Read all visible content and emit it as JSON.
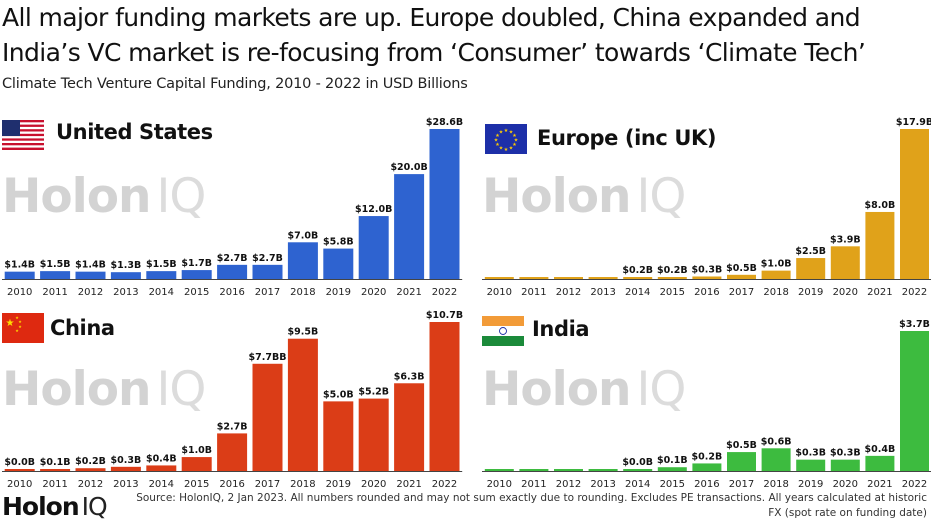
{
  "header": {
    "headline_line1": "All major funding markets are up. Europe doubled, China expanded and",
    "headline_line2": "India’s VC market is re-focusing from ‘Consumer’ towards ‘Climate Tech’",
    "subtitle": "Climate Tech Venture Capital Funding, 2010 - 2022 in USD Billions"
  },
  "watermark": {
    "brand": "Holon",
    "suffix": "IQ"
  },
  "footer": {
    "logo_brand": "Holon",
    "logo_suffix": "IQ",
    "source_line1": "Source: HolonIQ, 2 Jan 2023. All numbers rounded and may not sum exactly due to rounding. Excludes PE transactions. All years calculated at historic",
    "source_line2": "FX (spot rate on funding date)"
  },
  "chart_data": [
    {
      "type": "bar",
      "title": "United States",
      "flag_icon": "us-flag-icon",
      "color": "#2e63d0",
      "categories": [
        "2010",
        "2011",
        "2012",
        "2013",
        "2014",
        "2015",
        "2016",
        "2017",
        "2018",
        "2019",
        "2020",
        "2021",
        "2022"
      ],
      "values": [
        1.4,
        1.5,
        1.4,
        1.3,
        1.5,
        1.7,
        2.7,
        2.7,
        7.0,
        5.8,
        12.0,
        20.0,
        28.6
      ],
      "labels": [
        "$1.4B",
        "$1.5B",
        "$1.4B",
        "$1.3B",
        "$1.5B",
        "$1.7B",
        "$2.7B",
        "$2.7B",
        "$7.0B",
        "$5.8B",
        "$12.0B",
        "$20.0B",
        "$28.6B"
      ],
      "ylim": [
        0,
        28.6
      ]
    },
    {
      "type": "bar",
      "title": "Europe (inc UK)",
      "flag_icon": "eu-flag-icon",
      "color": "#e0a21a",
      "categories": [
        "2010",
        "2011",
        "2012",
        "2013",
        "2014",
        "2015",
        "2016",
        "2017",
        "2018",
        "2019",
        "2020",
        "2021",
        "2022"
      ],
      "values": [
        0.0,
        0.0,
        0.1,
        0.1,
        0.2,
        0.2,
        0.3,
        0.5,
        1.0,
        2.5,
        3.9,
        8.0,
        17.9
      ],
      "labels": [
        "",
        "",
        "",
        "",
        "$0.2B",
        "$0.2B",
        "$0.3B",
        "$0.5B",
        "$1.0B",
        "$2.5B",
        "$3.9B",
        "$8.0B",
        "$17.9B"
      ],
      "ylim": [
        0,
        17.9
      ]
    },
    {
      "type": "bar",
      "title": "China",
      "flag_icon": "china-flag-icon",
      "color": "#db3d17",
      "categories": [
        "2010",
        "2011",
        "2012",
        "2013",
        "2014",
        "2015",
        "2016",
        "2017",
        "2018",
        "2019",
        "2020",
        "2021",
        "2022"
      ],
      "values": [
        0.0,
        0.1,
        0.2,
        0.3,
        0.4,
        1.0,
        2.7,
        7.7,
        9.5,
        5.0,
        5.2,
        6.3,
        10.7
      ],
      "labels": [
        "$0.0B",
        "$0.1B",
        "$0.2B",
        "$0.3B",
        "$0.4B",
        "$1.0B",
        "$2.7B",
        "$7.7BB",
        "$9.5B",
        "$5.0B",
        "$5.2B",
        "$6.3B",
        "$10.7B"
      ],
      "ylim": [
        0,
        10.7
      ]
    },
    {
      "type": "bar",
      "title": "India",
      "flag_icon": "india-flag-icon",
      "color": "#3dbb3f",
      "categories": [
        "2010",
        "2011",
        "2012",
        "2013",
        "2014",
        "2015",
        "2016",
        "2017",
        "2018",
        "2019",
        "2020",
        "2021",
        "2022"
      ],
      "values": [
        0.02,
        0.02,
        0.02,
        0.02,
        0.0,
        0.1,
        0.2,
        0.5,
        0.6,
        0.3,
        0.3,
        0.4,
        3.7
      ],
      "labels": [
        "",
        "",
        "",
        "",
        "$0.0B",
        "$0.1B",
        "$0.2B",
        "$0.5B",
        "$0.6B",
        "$0.3B",
        "$0.3B",
        "$0.4B",
        "$3.7B"
      ],
      "ylim": [
        0,
        3.7
      ]
    }
  ]
}
